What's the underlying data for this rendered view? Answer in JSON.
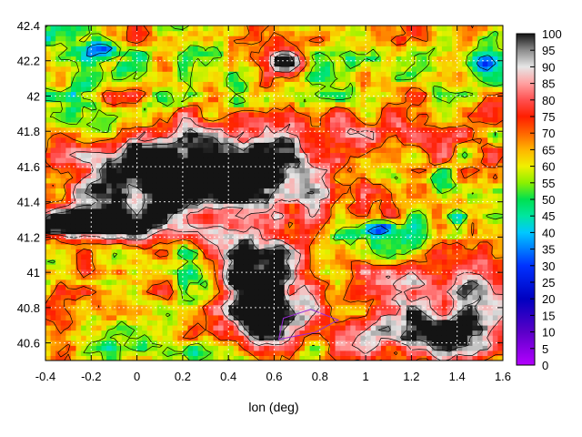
{
  "chart_data": {
    "type": "heatmap",
    "title": "",
    "xlabel": "lon (deg)",
    "ylabel": "",
    "xlim": [
      -0.4,
      1.6
    ],
    "ylim": [
      40.5,
      42.4
    ],
    "x_ticks": [
      -0.4,
      -0.2,
      0,
      0.2,
      0.4,
      0.6,
      0.8,
      1,
      1.2,
      1.4,
      1.6
    ],
    "x_tick_labels": [
      "-0.4",
      "-0.2",
      "0",
      "0.2",
      "0.4",
      "0.6",
      "0.8",
      "1",
      "1.2",
      "1.4",
      "1.6"
    ],
    "y_ticks": [
      40.6,
      40.8,
      41,
      41.2,
      41.4,
      41.6,
      41.8,
      42,
      42.2,
      42.4
    ],
    "y_tick_labels": [
      "40.6",
      "40.8",
      "41",
      "41.2",
      "41.4",
      "41.6",
      "41.8",
      "42",
      "42.2",
      "42.4"
    ],
    "grid": true,
    "colorbar": {
      "range": [
        0,
        100
      ],
      "ticks": [
        0,
        5,
        10,
        15,
        20,
        25,
        30,
        35,
        40,
        45,
        50,
        55,
        60,
        65,
        70,
        75,
        80,
        85,
        90,
        95,
        100
      ],
      "tick_labels": [
        "0",
        "5",
        "10",
        "15",
        "20",
        "25",
        "30",
        "35",
        "40",
        "45",
        "50",
        "55",
        "60",
        "65",
        "70",
        "75",
        "80",
        "85",
        "90",
        "95",
        "100"
      ],
      "colors": [
        {
          "v": 0,
          "c": "#b400ff"
        },
        {
          "v": 10,
          "c": "#5a00c8"
        },
        {
          "v": 20,
          "c": "#0000c0"
        },
        {
          "v": 30,
          "c": "#0032ff"
        },
        {
          "v": 40,
          "c": "#00c8ff"
        },
        {
          "v": 45,
          "c": "#00e6a0"
        },
        {
          "v": 50,
          "c": "#00e050"
        },
        {
          "v": 55,
          "c": "#8cf000"
        },
        {
          "v": 60,
          "c": "#f0f000"
        },
        {
          "v": 65,
          "c": "#ffb400"
        },
        {
          "v": 70,
          "c": "#ff6400"
        },
        {
          "v": 75,
          "c": "#ff1e00"
        },
        {
          "v": 80,
          "c": "#ff5050"
        },
        {
          "v": 85,
          "c": "#ffa0a0"
        },
        {
          "v": 90,
          "c": "#e6e6e6"
        },
        {
          "v": 95,
          "c": "#8c8c8c"
        },
        {
          "v": 100,
          "c": "#141414"
        }
      ]
    }
  }
}
